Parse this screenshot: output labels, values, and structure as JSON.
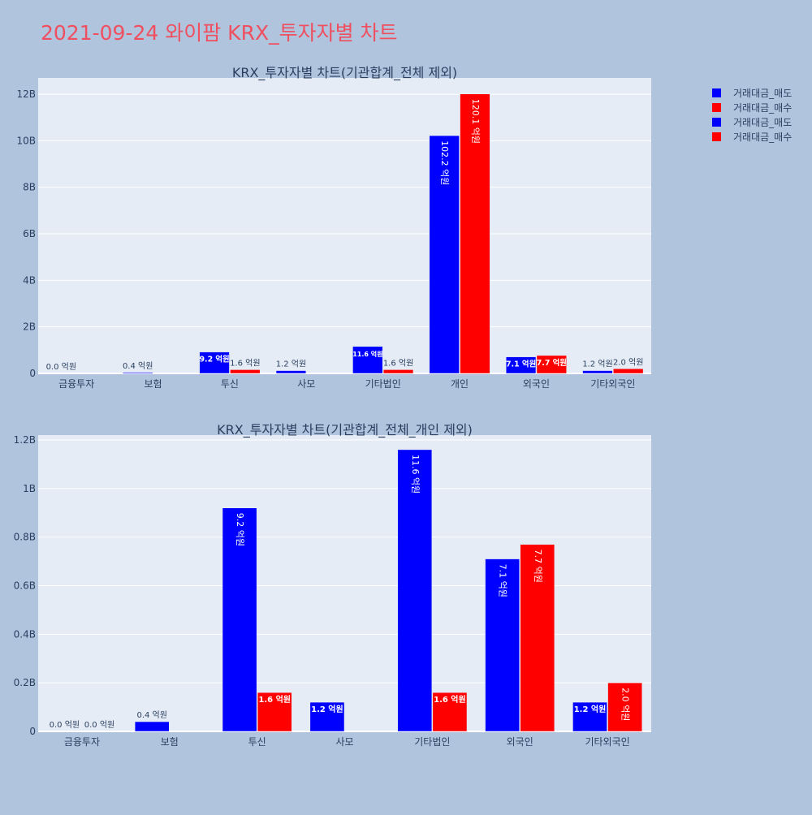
{
  "page_title": "2021-09-24 와이팜 KRX_투자자별 차트",
  "colors": {
    "page_bg": "#b0c4de",
    "plot_bg": "#e5ecf6",
    "grid": "#ffffff",
    "title": "#ef4f5f",
    "text": "#2a3f5f",
    "sell": "#0000ff",
    "buy": "#ff0000"
  },
  "legend": {
    "placement": "top-right",
    "items": [
      {
        "label": "거래대금_매도",
        "color": "#0000ff"
      },
      {
        "label": "거래대금_매수",
        "color": "#ff0000"
      },
      {
        "label": "거래대금_매도",
        "color": "#0000ff"
      },
      {
        "label": "거래대금_매수",
        "color": "#ff0000"
      }
    ]
  },
  "chart_data": [
    {
      "type": "bar",
      "title": "KRX_투자자별 차트(기관합계_전체 제외)",
      "categories": [
        "금융투자",
        "보험",
        "투신",
        "사모",
        "기타법인",
        "개인",
        "외국인",
        "기타외국인"
      ],
      "series": [
        {
          "name": "거래대금_매도",
          "values": [
            0,
            40000000,
            920000000,
            120000000,
            1160000000,
            10220000000,
            710000000,
            120000000
          ],
          "labels": [
            "0.0 억원",
            "0.4 억원",
            "9.2 억원",
            "1.2 억원",
            "11.6 억원",
            "102.2 억원",
            "7.1 억원",
            "1.2 억원"
          ]
        },
        {
          "name": "거래대금_매수",
          "values": [
            0,
            0,
            160000000,
            0,
            160000000,
            12010000000,
            770000000,
            200000000
          ],
          "labels": [
            "",
            "",
            "1.6 억원",
            "",
            "1.6 억원",
            "120.1 억원",
            "7.7 억원",
            "2.0 억원"
          ]
        }
      ],
      "ylim": [
        0,
        12700000000
      ],
      "yticks": [
        {
          "value": 0,
          "label": "0"
        },
        {
          "value": 2000000000,
          "label": "2B"
        },
        {
          "value": 4000000000,
          "label": "4B"
        },
        {
          "value": 6000000000,
          "label": "6B"
        },
        {
          "value": 8000000000,
          "label": "8B"
        },
        {
          "value": 10000000000,
          "label": "10B"
        },
        {
          "value": 12000000000,
          "label": "12B"
        }
      ],
      "grid": true
    },
    {
      "type": "bar",
      "title": "KRX_투자자별 차트(기관합계_전체_개인 제외)",
      "categories": [
        "금융투자",
        "보험",
        "투신",
        "사모",
        "기타법인",
        "외국인",
        "기타외국인"
      ],
      "series": [
        {
          "name": "거래대금_매도",
          "values": [
            0,
            40000000,
            920000000,
            120000000,
            1160000000,
            710000000,
            120000000
          ],
          "labels": [
            "0.0 억원",
            "0.4 억원",
            "9.2 억원",
            "1.2 억원",
            "11.6 억원",
            "7.1 억원",
            "1.2 억원"
          ]
        },
        {
          "name": "거래대금_매수",
          "values": [
            0,
            0,
            160000000,
            0,
            160000000,
            770000000,
            200000000
          ],
          "labels": [
            "0.0 억원",
            "",
            "1.6 억원",
            "",
            "1.6 억원",
            "7.7 억원",
            "2.0 억원"
          ]
        }
      ],
      "ylim": [
        0,
        1220000000
      ],
      "yticks": [
        {
          "value": 0,
          "label": "0"
        },
        {
          "value": 200000000,
          "label": "0.2B"
        },
        {
          "value": 400000000,
          "label": "0.4B"
        },
        {
          "value": 600000000,
          "label": "0.6B"
        },
        {
          "value": 800000000,
          "label": "0.8B"
        },
        {
          "value": 1000000000,
          "label": "1B"
        },
        {
          "value": 1200000000,
          "label": "1.2B"
        }
      ],
      "grid": true
    }
  ]
}
